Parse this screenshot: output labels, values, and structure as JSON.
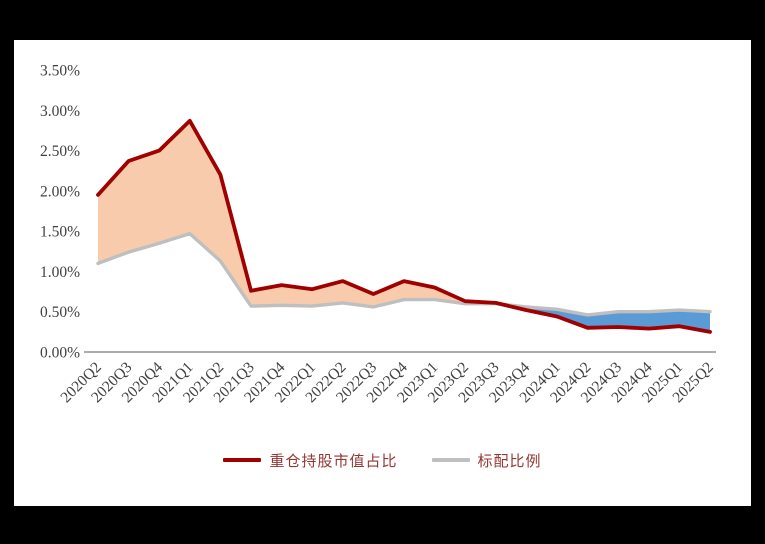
{
  "page": {
    "background_color": "#000000",
    "panel_background_color": "#FFFFFF"
  },
  "chart_data": {
    "type": "line",
    "title": "",
    "xlabel": "",
    "ylabel": "",
    "grid": false,
    "legend_position": "bottom",
    "ylim": [
      0,
      3.5
    ],
    "y_ticks": [
      "0.00%",
      "0.50%",
      "1.00%",
      "1.50%",
      "2.00%",
      "2.50%",
      "3.00%",
      "3.50%"
    ],
    "y_tick_values": [
      0,
      0.5,
      1.0,
      1.5,
      2.0,
      2.5,
      3.0,
      3.5
    ],
    "categories": [
      "2020Q2",
      "2020Q3",
      "2020Q4",
      "2021Q1",
      "2021Q2",
      "2021Q3",
      "2021Q4",
      "2022Q1",
      "2022Q2",
      "2022Q3",
      "2022Q4",
      "2023Q1",
      "2023Q2",
      "2023Q3",
      "2023Q4",
      "2024Q1",
      "2024Q2",
      "2024Q3",
      "2024Q4",
      "2025Q1",
      "2025Q2"
    ],
    "series": [
      {
        "name": "重仓持股市值占比",
        "color": "#A00000",
        "values": [
          1.95,
          2.37,
          2.5,
          2.87,
          2.2,
          0.76,
          0.83,
          0.78,
          0.88,
          0.72,
          0.88,
          0.8,
          0.63,
          0.61,
          0.52,
          0.44,
          0.3,
          0.31,
          0.29,
          0.32,
          0.25
        ]
      },
      {
        "name": "标配比例",
        "color": "#BFBFBF",
        "values": [
          1.1,
          1.24,
          1.35,
          1.47,
          1.13,
          0.57,
          0.58,
          0.57,
          0.61,
          0.56,
          0.65,
          0.65,
          0.6,
          0.6,
          0.56,
          0.53,
          0.46,
          0.5,
          0.5,
          0.52,
          0.5
        ]
      }
    ],
    "fill_between": {
      "above_color": "#F8CBAD",
      "below_color": "#5B9BD5",
      "description": "shaded band between the two series: peach where series 0 is above series 1, blue where series 0 is below series 1"
    },
    "axis_line_color": "#595959",
    "tick_label_color": "#404040"
  },
  "legend": {
    "items": [
      {
        "label": "重仓持股市值占比",
        "color": "#A00000"
      },
      {
        "label": "标配比例",
        "color": "#BFBFBF"
      }
    ]
  }
}
